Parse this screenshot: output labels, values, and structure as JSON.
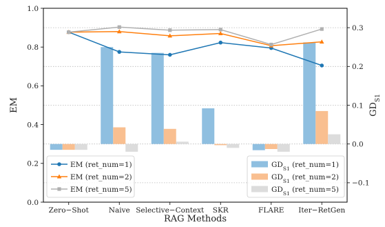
{
  "chart_data": {
    "type": "bar+line",
    "categories": [
      "Zero−Shot",
      "Naive",
      "Selective−Context",
      "SKR",
      "FLARE",
      "Iter−RetGen"
    ],
    "xlabel": "RAG Methods",
    "ylabel_left": "EM",
    "ylabel_right": "GD",
    "ylabel_right_sub": "S1",
    "ylim_left": [
      0,
      1.0
    ],
    "yticks_left": [
      "0.0",
      "0.2",
      "0.4",
      "0.6",
      "0.8",
      "1.0"
    ],
    "ylim_right": [
      -0.15,
      0.35
    ],
    "yticks_right": [
      "−0.1",
      "0.0",
      "0.1",
      "0.2",
      "0.3"
    ],
    "line_series": [
      {
        "name": "EM (ret_num=1)",
        "color": "#1f77b4",
        "marker": "circle",
        "values": [
          0.877,
          0.775,
          0.76,
          0.823,
          0.795,
          0.705
        ]
      },
      {
        "name": "EM (ret_num=2)",
        "color": "#ff7f0e",
        "marker": "triangle",
        "values": [
          0.877,
          0.88,
          0.858,
          0.87,
          0.807,
          0.827
        ]
      },
      {
        "name": "EM (ret_num=5)",
        "color": "#b0b0b0",
        "marker": "square",
        "values": [
          0.877,
          0.903,
          0.887,
          0.89,
          0.813,
          0.893
        ]
      }
    ],
    "bar_series": [
      {
        "name": "GD",
        "name_sub": "S1",
        "name_tail": " (ret_num=1)",
        "color": "#8fbfe0",
        "values": [
          -0.015,
          0.25,
          0.235,
          0.092,
          -0.016,
          0.262
        ]
      },
      {
        "name": "GD",
        "name_sub": "S1",
        "name_tail": " (ret_num=2)",
        "color": "#f9bf90",
        "values": [
          -0.015,
          0.043,
          0.039,
          -0.003,
          -0.013,
          0.085
        ]
      },
      {
        "name": "GD",
        "name_sub": "S1",
        "name_tail": " (ret_num=5)",
        "color": "#dcdcdc",
        "values": [
          -0.015,
          -0.02,
          0.006,
          -0.01,
          -0.02,
          0.025
        ]
      }
    ],
    "grid": "horizontal dotted",
    "legend_left_placement": "bottom-left",
    "legend_right_placement": "bottom-right"
  }
}
